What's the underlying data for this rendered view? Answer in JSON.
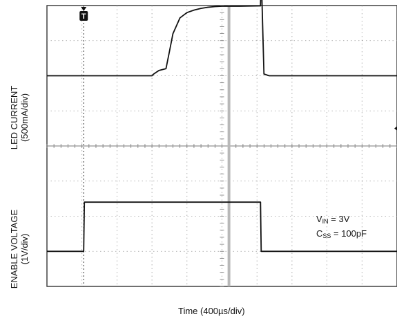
{
  "chart_data": {
    "type": "line",
    "title": "",
    "xlabel": "Time (400µs/div)",
    "x_divisions": 10,
    "y_divisions": 8,
    "trigger_marker": "T",
    "trigger_division": 1.05,
    "cursor_division": 5.2,
    "ylabels": [
      {
        "line1": "LED CURRENT",
        "line2": "(500mA/div)"
      },
      {
        "line1": "ENABLE VOLTAGE",
        "line2": "(1V/div)"
      }
    ],
    "annotations": [
      {
        "sym": "V",
        "sub": "IN",
        "rest": " = 3V"
      },
      {
        "sym": "C",
        "sub": "SS",
        "rest": " = 100pF"
      }
    ],
    "series": [
      {
        "name": "LED CURRENT",
        "unit_per_div": "500mA",
        "x_div": [
          0,
          3.0,
          3.05,
          3.2,
          3.4,
          3.5,
          3.6,
          3.8,
          4.0,
          4.2,
          4.4,
          4.6,
          4.8,
          5.0,
          5.5,
          6.1,
          6.12,
          6.16,
          6.2,
          6.35,
          10
        ],
        "y_div": [
          6.0,
          6.0,
          6.05,
          6.15,
          6.2,
          6.7,
          7.2,
          7.65,
          7.8,
          7.87,
          7.92,
          7.95,
          7.97,
          7.98,
          7.98,
          7.99,
          9.0,
          7.5,
          6.05,
          6.0,
          6.0
        ]
      },
      {
        "name": "ENABLE VOLTAGE",
        "unit_per_div": "1V",
        "x_div": [
          0,
          1.05,
          1.07,
          6.1,
          6.12,
          10
        ],
        "y_div": [
          1.0,
          1.0,
          2.4,
          2.4,
          1.0,
          1.0
        ]
      }
    ]
  }
}
